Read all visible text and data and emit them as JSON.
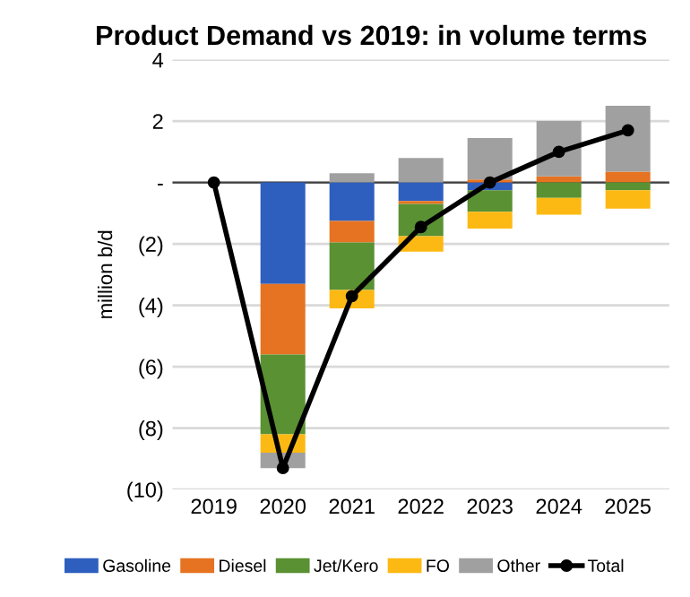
{
  "chart_data": {
    "type": "bar",
    "title": "Product Demand vs 2019: in volume terms",
    "ylabel": "million b/d",
    "stacked": true,
    "categories": [
      "2019",
      "2020",
      "2021",
      "2022",
      "2023",
      "2024",
      "2025"
    ],
    "series": [
      {
        "name": "Gasoline",
        "color": "#2e5fbf",
        "values": [
          0,
          -3.3,
          -1.25,
          -0.6,
          -0.25,
          0,
          0
        ]
      },
      {
        "name": "Diesel",
        "color": "#e67321",
        "values": [
          0,
          -2.3,
          -0.7,
          -0.1,
          0.1,
          0.2,
          0.35
        ]
      },
      {
        "name": "Jet/Kero",
        "color": "#5a9133",
        "values": [
          0,
          -2.6,
          -1.55,
          -1.05,
          -0.7,
          -0.5,
          -0.25
        ]
      },
      {
        "name": "FO",
        "color": "#fdb913",
        "values": [
          0,
          -0.6,
          -0.6,
          -0.5,
          -0.55,
          -0.55,
          -0.6
        ]
      },
      {
        "name": "Other",
        "color": "#a0a0a0",
        "values": [
          0,
          -0.5,
          0.3,
          0.8,
          1.35,
          1.8,
          2.15
        ]
      },
      {
        "name": "Total",
        "type": "line",
        "color": "#000000",
        "marker": "circle",
        "values": [
          0,
          -9.3,
          -3.7,
          -1.45,
          0,
          1.0,
          1.7
        ]
      }
    ],
    "ylim": [
      -10,
      4
    ],
    "yticks": [
      {
        "value": -10,
        "label": "(10)"
      },
      {
        "value": -8,
        "label": "(8)"
      },
      {
        "value": -6,
        "label": "(6)"
      },
      {
        "value": -4,
        "label": "(4)"
      },
      {
        "value": -2,
        "label": "(2)"
      },
      {
        "value": 0,
        "label": "-"
      },
      2,
      4
    ],
    "grid": "y",
    "legend": "bottom"
  }
}
